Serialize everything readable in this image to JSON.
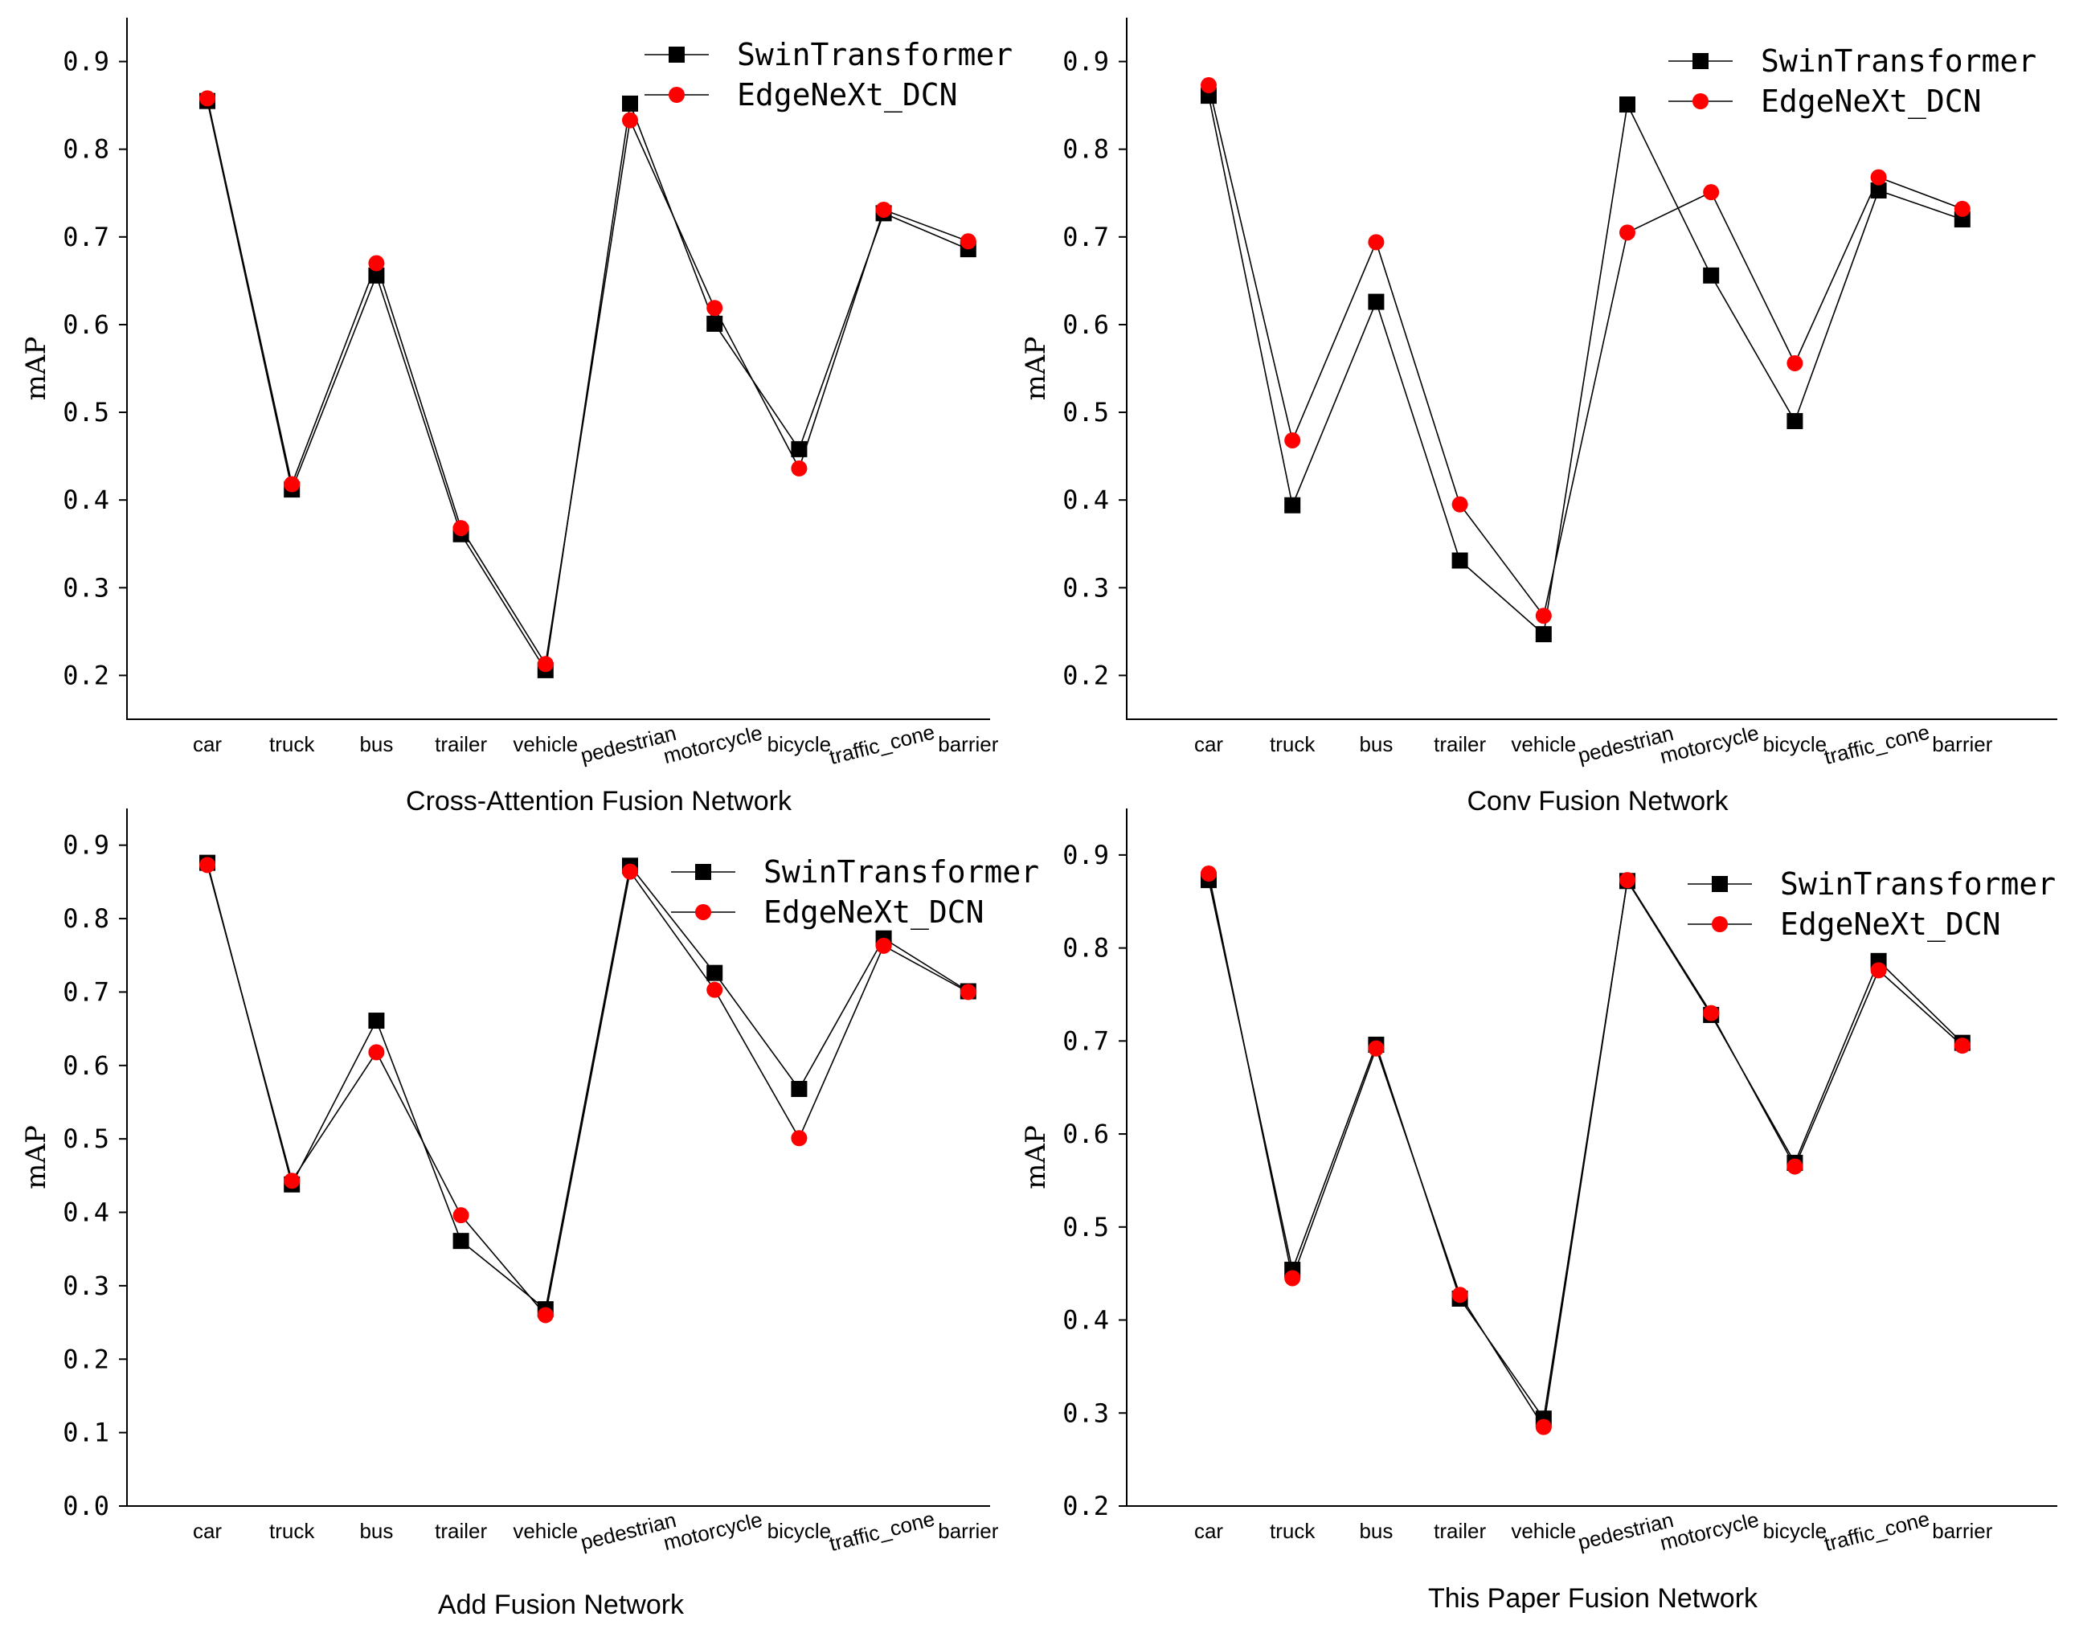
{
  "chart_data": [
    {
      "type": "line",
      "title": "Cross-Attention Fusion Network",
      "ylabel": "mAP",
      "xlabel": "",
      "categories": [
        "car",
        "truck",
        "bus",
        "trailer",
        "vehicle",
        "pedestrian",
        "motorcycle",
        "bicycle",
        "traffic_cone",
        "barrier"
      ],
      "ylim": [
        0.15,
        0.95
      ],
      "yticks": [
        "0.2",
        "0.3",
        "0.4",
        "0.5",
        "0.6",
        "0.7",
        "0.8",
        "0.9"
      ],
      "legend_position": "top-right",
      "series": [
        {
          "name": "SwinTransformer",
          "marker": "square",
          "color": "#000000",
          "values": [
            0.855,
            0.412,
            0.656,
            0.361,
            0.206,
            0.852,
            0.601,
            0.458,
            0.727,
            0.686
          ]
        },
        {
          "name": "EdgeNeXt_DCN",
          "marker": "circle",
          "color": "#ff0000",
          "values": [
            0.858,
            0.418,
            0.67,
            0.368,
            0.213,
            0.833,
            0.619,
            0.436,
            0.731,
            0.695
          ]
        }
      ]
    },
    {
      "type": "line",
      "title": "Conv Fusion Network",
      "ylabel": "mAP",
      "xlabel": "",
      "categories": [
        "car",
        "truck",
        "bus",
        "trailer",
        "vehicle",
        "pedestrian",
        "motorcycle",
        "bicycle",
        "traffic_cone",
        "barrier"
      ],
      "ylim": [
        0.15,
        0.95
      ],
      "yticks": [
        "0.2",
        "0.3",
        "0.4",
        "0.5",
        "0.6",
        "0.7",
        "0.8",
        "0.9"
      ],
      "legend_position": "top-right",
      "series": [
        {
          "name": "SwinTransformer",
          "marker": "square",
          "color": "#000000",
          "values": [
            0.861,
            0.394,
            0.626,
            0.331,
            0.247,
            0.851,
            0.656,
            0.49,
            0.753,
            0.72
          ]
        },
        {
          "name": "EdgeNeXt_DCN",
          "marker": "circle",
          "color": "#ff0000",
          "values": [
            0.873,
            0.468,
            0.694,
            0.395,
            0.268,
            0.705,
            0.751,
            0.556,
            0.768,
            0.732
          ]
        }
      ]
    },
    {
      "type": "line",
      "title": "Add Fusion Network",
      "ylabel": "mAP",
      "xlabel": "",
      "categories": [
        "car",
        "truck",
        "bus",
        "trailer",
        "vehicle",
        "pedestrian",
        "motorcycle",
        "bicycle",
        "traffic_cone",
        "barrier"
      ],
      "ylim": [
        0.0,
        0.95
      ],
      "yticks": [
        "0.0",
        "0.1",
        "0.2",
        "0.3",
        "0.4",
        "0.5",
        "0.6",
        "0.7",
        "0.8",
        "0.9"
      ],
      "legend_position": "top-right",
      "series": [
        {
          "name": "SwinTransformer",
          "marker": "square",
          "color": "#000000",
          "values": [
            0.876,
            0.438,
            0.661,
            0.361,
            0.268,
            0.872,
            0.726,
            0.568,
            0.773,
            0.701
          ]
        },
        {
          "name": "EdgeNeXt_DCN",
          "marker": "circle",
          "color": "#ff0000",
          "values": [
            0.873,
            0.443,
            0.618,
            0.396,
            0.26,
            0.864,
            0.703,
            0.501,
            0.763,
            0.7
          ]
        }
      ]
    },
    {
      "type": "line",
      "title": "This Paper Fusion Network",
      "ylabel": "mAP",
      "xlabel": "",
      "categories": [
        "car",
        "truck",
        "bus",
        "trailer",
        "vehicle",
        "pedestrian",
        "motorcycle",
        "bicycle",
        "traffic_cone",
        "barrier"
      ],
      "ylim": [
        0.2,
        0.95
      ],
      "yticks": [
        "0.2",
        "0.3",
        "0.4",
        "0.5",
        "0.6",
        "0.7",
        "0.8",
        "0.9"
      ],
      "legend_position": "top-right",
      "series": [
        {
          "name": "SwinTransformer",
          "marker": "square",
          "color": "#000000",
          "values": [
            0.873,
            0.454,
            0.696,
            0.423,
            0.294,
            0.872,
            0.728,
            0.569,
            0.786,
            0.698
          ]
        },
        {
          "name": "EdgeNeXt_DCN",
          "marker": "circle",
          "color": "#ff0000",
          "values": [
            0.88,
            0.445,
            0.692,
            0.427,
            0.285,
            0.873,
            0.73,
            0.565,
            0.776,
            0.695
          ]
        }
      ]
    }
  ]
}
